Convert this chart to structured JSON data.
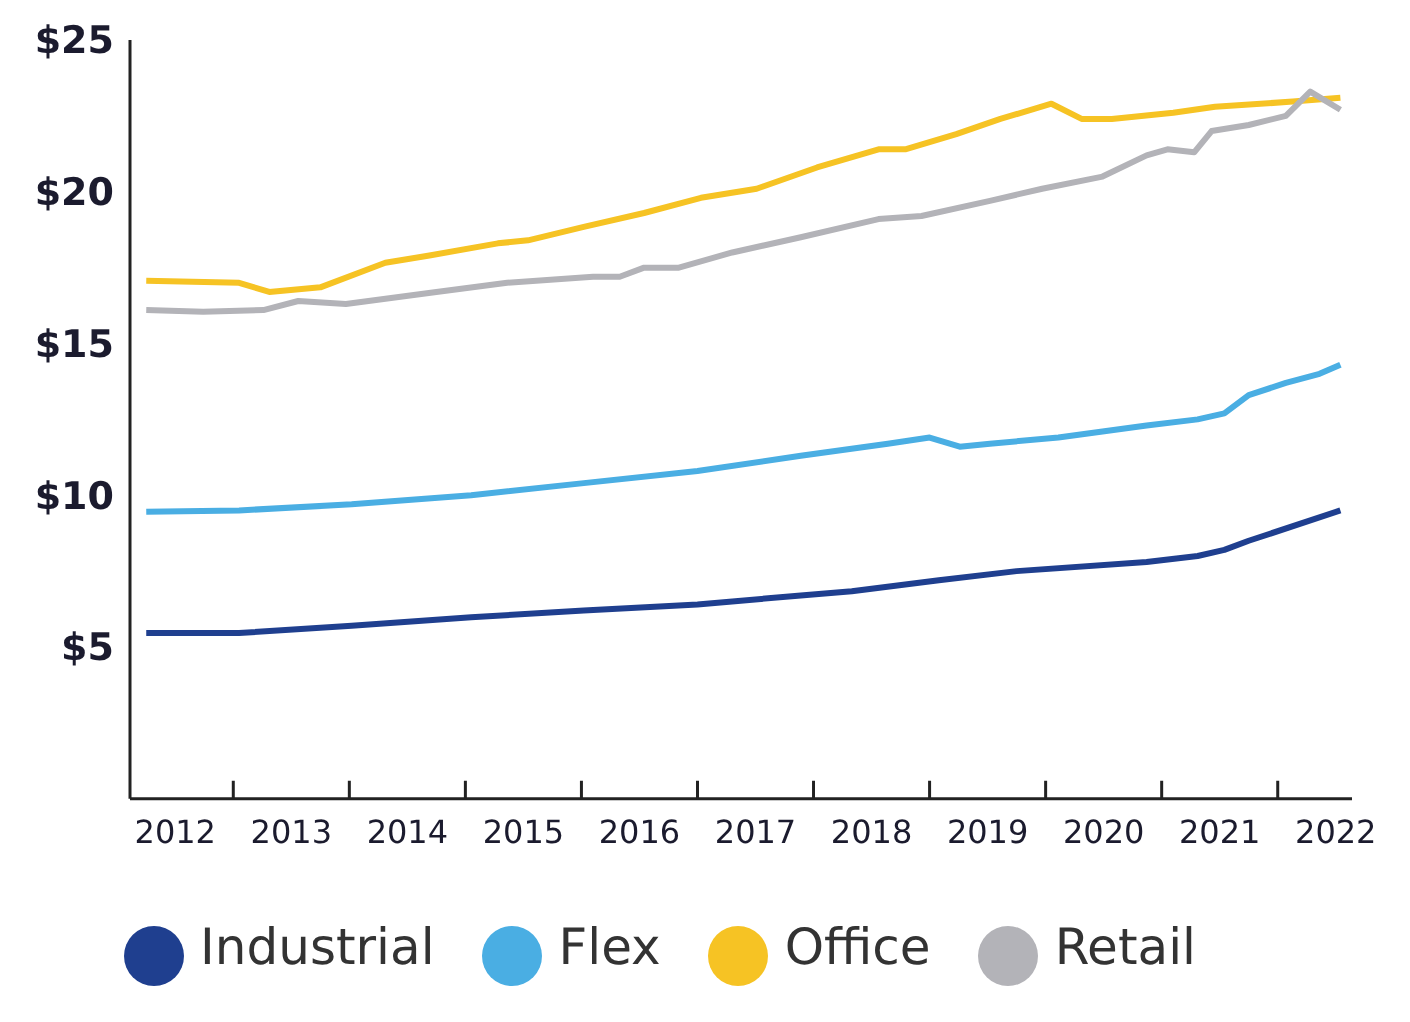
{
  "chart_data": {
    "type": "line",
    "xlim": [
      2011.61,
      2022.14
    ],
    "ylim": [
      0,
      25
    ],
    "xticks": [
      2012,
      {
        "value": 2012.5,
        "label": null
      },
      2013,
      {
        "value": 2013.5,
        "label": null
      },
      2014,
      {
        "value": 2014.5,
        "label": null
      },
      2015,
      {
        "value": 2015.5,
        "label": null
      },
      2016,
      {
        "value": 2016.5,
        "label": null
      },
      2017,
      {
        "value": 2017.5,
        "label": null
      },
      2018,
      {
        "value": 2018.5,
        "label": null
      },
      2019,
      {
        "value": 2019.5,
        "label": null
      },
      2020,
      {
        "value": 2020.5,
        "label": null
      },
      2021,
      {
        "value": 2021.5,
        "label": null
      },
      2022
    ],
    "yticks": [
      {
        "value": 5,
        "label": "$5"
      },
      {
        "value": 10,
        "label": "$10"
      },
      {
        "value": 15,
        "label": "$15"
      },
      {
        "value": 20,
        "label": "$20"
      },
      {
        "value": 25,
        "label": "$25"
      }
    ],
    "grid": false,
    "legend": "bottom",
    "marker": "none",
    "line_style": "solid",
    "series": [
      {
        "name": "Industrial",
        "color": "#1f3f8f",
        "x": [
          2011.75,
          2012.55,
          2013.52,
          2014.55,
          2015.52,
          2016.5,
          2017.39,
          2017.83,
          2018.58,
          2019.25,
          2020.37,
          2020.81,
          2021.04,
          2021.25,
          2022.04
        ],
        "values": [
          5.46,
          5.46,
          5.7,
          5.98,
          6.2,
          6.4,
          6.7,
          6.84,
          7.2,
          7.5,
          7.8,
          8.0,
          8.2,
          8.5,
          9.5
        ]
      },
      {
        "name": "Flex",
        "color": "#4aaee3",
        "x": [
          2011.75,
          2012.55,
          2013.52,
          2014.55,
          2015.52,
          2016.5,
          2017.39,
          2018.14,
          2018.5,
          2018.76,
          2019.02,
          2019.61,
          2020.37,
          2020.81,
          2021.04,
          2021.25,
          2021.57,
          2021.86,
          2022.04
        ],
        "values": [
          9.46,
          9.5,
          9.7,
          10.0,
          10.4,
          10.8,
          11.3,
          11.7,
          11.9,
          11.6,
          11.7,
          11.9,
          12.3,
          12.5,
          12.7,
          13.3,
          13.7,
          14.0,
          14.3
        ]
      },
      {
        "name": "Office",
        "color": "#f6c324",
        "x": [
          2011.75,
          2012.55,
          2012.81,
          2013.25,
          2013.81,
          2014.19,
          2014.78,
          2015.04,
          2015.52,
          2016.04,
          2016.53,
          2017.01,
          2017.53,
          2018.06,
          2018.29,
          2018.73,
          2019.11,
          2019.55,
          2019.81,
          2020.07,
          2020.6,
          2020.96,
          2021.63,
          2022.04
        ],
        "values": [
          17.07,
          17.0,
          16.7,
          16.85,
          17.66,
          17.9,
          18.3,
          18.4,
          18.84,
          19.3,
          19.8,
          20.1,
          20.8,
          21.4,
          21.4,
          21.9,
          22.4,
          22.9,
          22.4,
          22.4,
          22.6,
          22.8,
          22.97,
          23.1
        ]
      },
      {
        "name": "Retail",
        "color": "#b3b3b8",
        "x": [
          2011.75,
          2012.24,
          2012.76,
          2013.06,
          2013.47,
          2014.25,
          2014.86,
          2015.6,
          2015.83,
          2016.04,
          2016.34,
          2016.8,
          2017.39,
          2018.06,
          2018.43,
          2019.02,
          2019.47,
          2019.99,
          2020.37,
          2020.55,
          2020.78,
          2020.93,
          2021.25,
          2021.57,
          2021.78,
          2022.04
        ],
        "values": [
          16.1,
          16.05,
          16.1,
          16.4,
          16.3,
          16.7,
          17.0,
          17.2,
          17.2,
          17.5,
          17.5,
          18.0,
          18.5,
          19.1,
          19.2,
          19.7,
          20.1,
          20.5,
          21.2,
          21.4,
          21.3,
          22.0,
          22.2,
          22.5,
          23.3,
          22.7
        ]
      }
    ]
  }
}
